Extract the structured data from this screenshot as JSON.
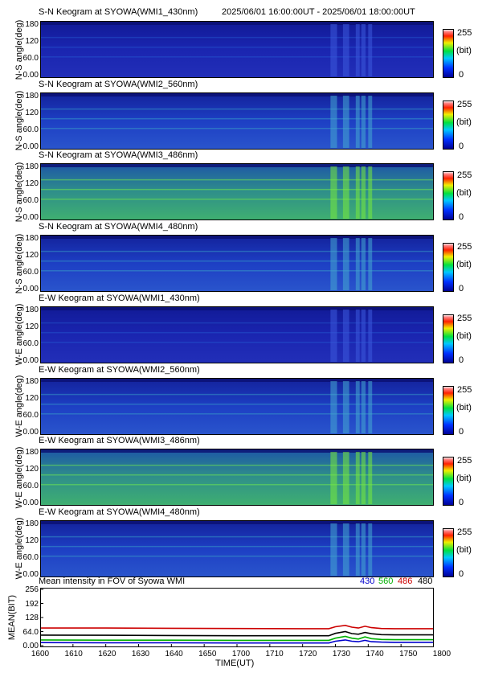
{
  "header": {
    "time_range": "2025/06/01 16:00:00UT - 2025/06/01 18:00:00UT"
  },
  "colors": {
    "line_430": "#0000cc",
    "line_560": "#00b000",
    "line_486": "#cc0000",
    "line_480": "#000000"
  },
  "keogram_panels": [
    {
      "title": "S-N Keogram at SYOWA(WMI1_430nm)",
      "ylabel": "N-S angle(deg)",
      "yticks": [
        "180",
        "120",
        "60.0",
        "0.00"
      ],
      "cbar_max": "255",
      "cbar_unit": "(bit)",
      "cbar_min": "0",
      "level": "dim"
    },
    {
      "title": "S-N Keogram at SYOWA(WMI2_560nm)",
      "ylabel": "N-S angle(deg)",
      "yticks": [
        "180",
        "120",
        "60.0",
        "0.00"
      ],
      "cbar_max": "255",
      "cbar_unit": "(bit)",
      "cbar_min": "0",
      "level": "medium"
    },
    {
      "title": "S-N Keogram at SYOWA(WMI3_486nm)",
      "ylabel": "N-S angle(deg)",
      "yticks": [
        "180",
        "120",
        "60.0",
        "0.00"
      ],
      "cbar_max": "255",
      "cbar_unit": "(bit)",
      "cbar_min": "0",
      "level": "bright"
    },
    {
      "title": "S-N Keogram at SYOWA(WMI4_480nm)",
      "ylabel": "N-S angle(deg)",
      "yticks": [
        "180",
        "120",
        "60.0",
        "0.00"
      ],
      "cbar_max": "255",
      "cbar_unit": "(bit)",
      "cbar_min": "0",
      "level": "medium"
    },
    {
      "title": "E-W Keogram at SYOWA(WMI1_430nm)",
      "ylabel": "W-E angle(deg)",
      "yticks": [
        "180",
        "120",
        "60.0",
        "0.00"
      ],
      "cbar_max": "255",
      "cbar_unit": "(bit)",
      "cbar_min": "0",
      "level": "dim"
    },
    {
      "title": "E-W Keogram at SYOWA(WMI2_560nm)",
      "ylabel": "W-E angle(deg)",
      "yticks": [
        "180",
        "120",
        "60.0",
        "0.00"
      ],
      "cbar_max": "255",
      "cbar_unit": "(bit)",
      "cbar_min": "0",
      "level": "medium"
    },
    {
      "title": "E-W Keogram at SYOWA(WMI3_486nm)",
      "ylabel": "W-E angle(deg)",
      "yticks": [
        "180",
        "120",
        "60.0",
        "0.00"
      ],
      "cbar_max": "255",
      "cbar_unit": "(bit)",
      "cbar_min": "0",
      "level": "bright"
    },
    {
      "title": "E-W Keogram at SYOWA(WMI4_480nm)",
      "ylabel": "W-E angle(deg)",
      "yticks": [
        "180",
        "120",
        "60.0",
        "0.00"
      ],
      "cbar_max": "255",
      "cbar_unit": "(bit)",
      "cbar_min": "0",
      "level": "medium"
    }
  ],
  "chart_data": {
    "type": "line",
    "title": "Mean intensity in FOV of Syowa WMI",
    "xlabel": "TIME(UT)",
    "ylabel": "MEAN(BIT)",
    "x_tick_labels": [
      "1600",
      "1610",
      "1620",
      "1630",
      "1640",
      "1650",
      "1700",
      "1710",
      "1720",
      "1730",
      "1740",
      "1750",
      "1800"
    ],
    "y_tick_labels": [
      "256",
      "192",
      "128",
      "64.0",
      "0.00"
    ],
    "ylim": [
      0,
      256
    ],
    "xlim_minutes": [
      0,
      120
    ],
    "legend_labels": [
      "430",
      "560",
      "486",
      "480"
    ],
    "series": [
      {
        "name": "430",
        "color": "#0000cc",
        "x_minutes": [
          0,
          20,
          40,
          60,
          80,
          88,
          90,
          93,
          95,
          97,
          99,
          101,
          104,
          108,
          112,
          120
        ],
        "values": [
          14,
          13,
          13,
          12,
          12,
          12,
          20,
          26,
          20,
          18,
          24,
          18,
          16,
          15,
          15,
          15
        ]
      },
      {
        "name": "560",
        "color": "#00b000",
        "x_minutes": [
          0,
          20,
          40,
          60,
          80,
          88,
          90,
          93,
          95,
          97,
          99,
          101,
          104,
          108,
          112,
          120
        ],
        "values": [
          26,
          25,
          25,
          24,
          24,
          24,
          34,
          42,
          34,
          30,
          40,
          32,
          28,
          27,
          27,
          27
        ]
      },
      {
        "name": "486",
        "color": "#cc0000",
        "x_minutes": [
          0,
          20,
          40,
          60,
          80,
          88,
          90,
          93,
          95,
          97,
          99,
          101,
          104,
          108,
          112,
          120
        ],
        "values": [
          80,
          80,
          79,
          78,
          77,
          77,
          86,
          92,
          84,
          80,
          88,
          82,
          78,
          77,
          77,
          77
        ]
      },
      {
        "name": "480",
        "color": "#000000",
        "x_minutes": [
          0,
          20,
          40,
          60,
          80,
          88,
          90,
          93,
          95,
          97,
          99,
          101,
          104,
          108,
          112,
          120
        ],
        "values": [
          48,
          47,
          46,
          45,
          45,
          45,
          56,
          64,
          55,
          52,
          60,
          54,
          50,
          49,
          49,
          49
        ]
      }
    ]
  }
}
